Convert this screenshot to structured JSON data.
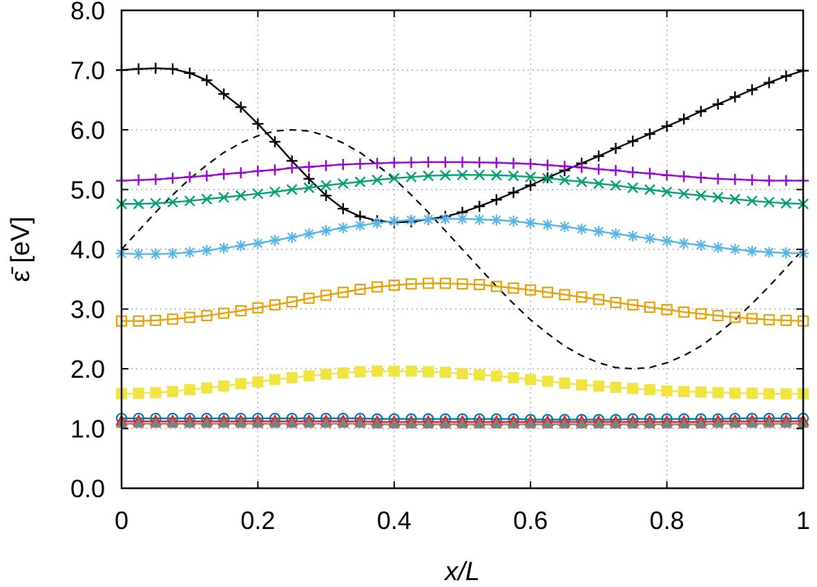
{
  "chart_data": {
    "type": "line",
    "title": "",
    "xlabel": "x/L",
    "ylabel": "ε̄ [eV]",
    "xlim": [
      0,
      1
    ],
    "ylim": [
      0,
      8
    ],
    "grid": true,
    "legend": "none",
    "x_ticks": [
      "0",
      "0.2",
      "0.4",
      "0.6",
      "0.8",
      "1"
    ],
    "y_ticks": [
      "0.0",
      "1.0",
      "2.0",
      "3.0",
      "4.0",
      "5.0",
      "6.0",
      "7.0",
      "8.0"
    ],
    "series": [
      {
        "color": "#000000",
        "marker": "plus",
        "line": "solid",
        "x": [
          0.0,
          0.025,
          0.05,
          0.075,
          0.1,
          0.125,
          0.15,
          0.175,
          0.2,
          0.225,
          0.25,
          0.275,
          0.3,
          0.325,
          0.35,
          0.375,
          0.4,
          0.425,
          0.45,
          0.475,
          0.5,
          0.525,
          0.55,
          0.575,
          0.6,
          0.625,
          0.65,
          0.675,
          0.7,
          0.725,
          0.75,
          0.775,
          0.8,
          0.825,
          0.85,
          0.875,
          0.9,
          0.925,
          0.95,
          0.975,
          1.0
        ],
        "y": [
          7.0,
          7.02,
          7.03,
          7.02,
          6.95,
          6.83,
          6.6,
          6.38,
          6.1,
          5.8,
          5.48,
          5.18,
          4.9,
          4.68,
          4.55,
          4.48,
          4.45,
          4.46,
          4.5,
          4.55,
          4.62,
          4.72,
          4.83,
          4.95,
          5.07,
          5.2,
          5.32,
          5.44,
          5.56,
          5.69,
          5.81,
          5.93,
          6.06,
          6.18,
          6.31,
          6.43,
          6.55,
          6.67,
          6.79,
          6.9,
          6.99
        ]
      },
      {
        "color": "#000000",
        "marker": "none",
        "line": "dashed",
        "x": [
          0.0,
          0.025,
          0.05,
          0.075,
          0.1,
          0.125,
          0.15,
          0.175,
          0.2,
          0.225,
          0.25,
          0.275,
          0.3,
          0.325,
          0.35,
          0.375,
          0.4,
          0.425,
          0.45,
          0.475,
          0.5,
          0.525,
          0.55,
          0.575,
          0.6,
          0.625,
          0.65,
          0.675,
          0.7,
          0.725,
          0.75,
          0.775,
          0.8,
          0.825,
          0.85,
          0.875,
          0.9,
          0.925,
          0.95,
          0.975,
          1.0
        ],
        "y": [
          4.0,
          4.31,
          4.62,
          4.91,
          5.18,
          5.41,
          5.62,
          5.78,
          5.9,
          5.98,
          6.0,
          5.98,
          5.9,
          5.78,
          5.62,
          5.41,
          5.18,
          4.91,
          4.62,
          4.31,
          4.0,
          3.69,
          3.38,
          3.09,
          2.82,
          2.59,
          2.38,
          2.22,
          2.1,
          2.02,
          2.0,
          2.02,
          2.1,
          2.22,
          2.38,
          2.59,
          2.82,
          3.09,
          3.38,
          3.69,
          4.0
        ]
      },
      {
        "color": "#9400d3",
        "marker": "plus",
        "line": "solid",
        "x": [
          0.0,
          0.025,
          0.05,
          0.075,
          0.1,
          0.125,
          0.15,
          0.175,
          0.2,
          0.225,
          0.25,
          0.275,
          0.3,
          0.325,
          0.35,
          0.375,
          0.4,
          0.425,
          0.45,
          0.475,
          0.5,
          0.525,
          0.55,
          0.575,
          0.6,
          0.625,
          0.65,
          0.675,
          0.7,
          0.725,
          0.75,
          0.775,
          0.8,
          0.825,
          0.85,
          0.875,
          0.9,
          0.925,
          0.95,
          0.975,
          1.0
        ],
        "y": [
          5.15,
          5.16,
          5.17,
          5.19,
          5.21,
          5.23,
          5.26,
          5.28,
          5.31,
          5.33,
          5.36,
          5.38,
          5.4,
          5.42,
          5.43,
          5.44,
          5.45,
          5.455,
          5.46,
          5.46,
          5.46,
          5.455,
          5.45,
          5.44,
          5.43,
          5.41,
          5.39,
          5.37,
          5.34,
          5.32,
          5.29,
          5.27,
          5.24,
          5.22,
          5.2,
          5.18,
          5.17,
          5.16,
          5.15,
          5.15,
          5.15
        ]
      },
      {
        "color": "#009e73",
        "marker": "x",
        "line": "solid",
        "x": [
          0.0,
          0.025,
          0.05,
          0.075,
          0.1,
          0.125,
          0.15,
          0.175,
          0.2,
          0.225,
          0.25,
          0.275,
          0.3,
          0.325,
          0.35,
          0.375,
          0.4,
          0.425,
          0.45,
          0.475,
          0.5,
          0.525,
          0.55,
          0.575,
          0.6,
          0.625,
          0.65,
          0.675,
          0.7,
          0.725,
          0.75,
          0.775,
          0.8,
          0.825,
          0.85,
          0.875,
          0.9,
          0.925,
          0.95,
          0.975,
          1.0
        ],
        "y": [
          4.76,
          4.76,
          4.77,
          4.79,
          4.81,
          4.84,
          4.87,
          4.9,
          4.93,
          4.96,
          5.0,
          5.03,
          5.07,
          5.1,
          5.13,
          5.16,
          5.19,
          5.21,
          5.23,
          5.24,
          5.245,
          5.245,
          5.24,
          5.23,
          5.21,
          5.19,
          5.16,
          5.13,
          5.1,
          5.07,
          5.03,
          5.0,
          4.96,
          4.93,
          4.9,
          4.87,
          4.84,
          4.81,
          4.79,
          4.77,
          4.76
        ]
      },
      {
        "color": "#56b4e9",
        "marker": "asterisk",
        "line": "solid",
        "x": [
          0.0,
          0.025,
          0.05,
          0.075,
          0.1,
          0.125,
          0.15,
          0.175,
          0.2,
          0.225,
          0.25,
          0.275,
          0.3,
          0.325,
          0.35,
          0.375,
          0.4,
          0.425,
          0.45,
          0.475,
          0.5,
          0.525,
          0.55,
          0.575,
          0.6,
          0.625,
          0.65,
          0.675,
          0.7,
          0.725,
          0.75,
          0.775,
          0.8,
          0.825,
          0.85,
          0.875,
          0.9,
          0.925,
          0.95,
          0.975,
          1.0
        ],
        "y": [
          3.93,
          3.92,
          3.92,
          3.93,
          3.95,
          3.98,
          4.02,
          4.06,
          4.1,
          4.15,
          4.2,
          4.26,
          4.31,
          4.36,
          4.4,
          4.44,
          4.47,
          4.49,
          4.5,
          4.51,
          4.51,
          4.5,
          4.49,
          4.47,
          4.44,
          4.41,
          4.38,
          4.34,
          4.3,
          4.26,
          4.22,
          4.18,
          4.14,
          4.1,
          4.07,
          4.03,
          4.0,
          3.97,
          3.95,
          3.94,
          3.93
        ]
      },
      {
        "color": "#e69f00",
        "marker": "square-open",
        "line": "solid",
        "x": [
          0.0,
          0.025,
          0.05,
          0.075,
          0.1,
          0.125,
          0.15,
          0.175,
          0.2,
          0.225,
          0.25,
          0.275,
          0.3,
          0.325,
          0.35,
          0.375,
          0.4,
          0.425,
          0.45,
          0.475,
          0.5,
          0.525,
          0.55,
          0.575,
          0.6,
          0.625,
          0.65,
          0.675,
          0.7,
          0.725,
          0.75,
          0.775,
          0.8,
          0.825,
          0.85,
          0.875,
          0.9,
          0.925,
          0.95,
          0.975,
          1.0
        ],
        "y": [
          2.8,
          2.8,
          2.81,
          2.83,
          2.86,
          2.89,
          2.93,
          2.97,
          3.02,
          3.07,
          3.12,
          3.18,
          3.23,
          3.28,
          3.33,
          3.37,
          3.4,
          3.42,
          3.43,
          3.43,
          3.42,
          3.41,
          3.38,
          3.35,
          3.32,
          3.28,
          3.24,
          3.2,
          3.16,
          3.11,
          3.07,
          3.03,
          2.99,
          2.95,
          2.92,
          2.89,
          2.86,
          2.84,
          2.82,
          2.81,
          2.8
        ]
      },
      {
        "color": "#f0e442",
        "marker": "square-filled",
        "line": "solid",
        "x": [
          0.0,
          0.025,
          0.05,
          0.075,
          0.1,
          0.125,
          0.15,
          0.175,
          0.2,
          0.225,
          0.25,
          0.275,
          0.3,
          0.325,
          0.35,
          0.375,
          0.4,
          0.425,
          0.45,
          0.475,
          0.5,
          0.525,
          0.55,
          0.575,
          0.6,
          0.625,
          0.65,
          0.675,
          0.7,
          0.725,
          0.75,
          0.775,
          0.8,
          0.825,
          0.85,
          0.875,
          0.9,
          0.925,
          0.95,
          0.975,
          1.0
        ],
        "y": [
          1.58,
          1.59,
          1.6,
          1.62,
          1.65,
          1.68,
          1.71,
          1.75,
          1.78,
          1.82,
          1.85,
          1.88,
          1.91,
          1.93,
          1.95,
          1.96,
          1.96,
          1.96,
          1.95,
          1.94,
          1.92,
          1.9,
          1.88,
          1.85,
          1.82,
          1.79,
          1.76,
          1.73,
          1.71,
          1.69,
          1.67,
          1.65,
          1.63,
          1.62,
          1.61,
          1.6,
          1.59,
          1.59,
          1.58,
          1.58,
          1.58
        ]
      },
      {
        "color": "#0072b2",
        "marker": "circle-open",
        "line": "solid",
        "x": [
          0.0,
          0.025,
          0.05,
          0.075,
          0.1,
          0.125,
          0.15,
          0.175,
          0.2,
          0.225,
          0.25,
          0.275,
          0.3,
          0.325,
          0.35,
          0.375,
          0.4,
          0.425,
          0.45,
          0.475,
          0.5,
          0.525,
          0.55,
          0.575,
          0.6,
          0.625,
          0.65,
          0.675,
          0.7,
          0.725,
          0.75,
          0.775,
          0.8,
          0.825,
          0.85,
          0.875,
          0.9,
          0.925,
          0.95,
          0.975,
          1.0
        ],
        "y": [
          1.17,
          1.17,
          1.17,
          1.17,
          1.17,
          1.17,
          1.17,
          1.17,
          1.17,
          1.17,
          1.17,
          1.17,
          1.17,
          1.17,
          1.17,
          1.16,
          1.16,
          1.16,
          1.16,
          1.16,
          1.16,
          1.16,
          1.16,
          1.16,
          1.15,
          1.15,
          1.15,
          1.15,
          1.15,
          1.15,
          1.16,
          1.16,
          1.16,
          1.16,
          1.16,
          1.16,
          1.17,
          1.17,
          1.17,
          1.17,
          1.17
        ]
      },
      {
        "color": "#e51e10",
        "marker": "triangle-open",
        "line": "solid",
        "x": [
          0.0,
          0.025,
          0.05,
          0.075,
          0.1,
          0.125,
          0.15,
          0.175,
          0.2,
          0.225,
          0.25,
          0.275,
          0.3,
          0.325,
          0.35,
          0.375,
          0.4,
          0.425,
          0.45,
          0.475,
          0.5,
          0.525,
          0.55,
          0.575,
          0.6,
          0.625,
          0.65,
          0.675,
          0.7,
          0.725,
          0.75,
          0.775,
          0.8,
          0.825,
          0.85,
          0.875,
          0.9,
          0.925,
          0.95,
          0.975,
          1.0
        ],
        "y": [
          1.12,
          1.12,
          1.12,
          1.12,
          1.12,
          1.12,
          1.12,
          1.12,
          1.12,
          1.12,
          1.12,
          1.12,
          1.12,
          1.12,
          1.12,
          1.11,
          1.11,
          1.11,
          1.11,
          1.11,
          1.11,
          1.11,
          1.11,
          1.11,
          1.11,
          1.11,
          1.11,
          1.11,
          1.11,
          1.11,
          1.11,
          1.11,
          1.11,
          1.11,
          1.11,
          1.12,
          1.12,
          1.12,
          1.12,
          1.12,
          1.12
        ]
      },
      {
        "color": "#808080",
        "marker": "triangle-filled",
        "line": "solid",
        "x": [
          0.0,
          0.025,
          0.05,
          0.075,
          0.1,
          0.125,
          0.15,
          0.175,
          0.2,
          0.225,
          0.25,
          0.275,
          0.3,
          0.325,
          0.35,
          0.375,
          0.4,
          0.425,
          0.45,
          0.475,
          0.5,
          0.525,
          0.55,
          0.575,
          0.6,
          0.625,
          0.65,
          0.675,
          0.7,
          0.725,
          0.75,
          0.775,
          0.8,
          0.825,
          0.85,
          0.875,
          0.9,
          0.925,
          0.95,
          0.975,
          1.0
        ],
        "y": [
          1.08,
          1.08,
          1.08,
          1.08,
          1.08,
          1.08,
          1.08,
          1.08,
          1.08,
          1.08,
          1.08,
          1.08,
          1.08,
          1.08,
          1.08,
          1.07,
          1.07,
          1.07,
          1.07,
          1.07,
          1.07,
          1.07,
          1.07,
          1.07,
          1.07,
          1.07,
          1.07,
          1.07,
          1.07,
          1.07,
          1.07,
          1.07,
          1.07,
          1.07,
          1.07,
          1.08,
          1.08,
          1.08,
          1.08,
          1.08,
          1.08
        ]
      }
    ]
  }
}
